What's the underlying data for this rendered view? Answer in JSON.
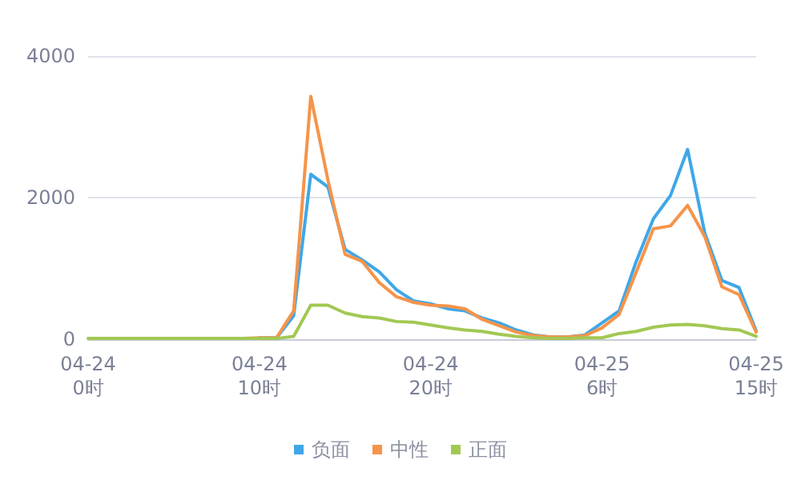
{
  "chart_data": {
    "type": "line",
    "categories": [
      "04-24\n0时",
      null,
      null,
      null,
      null,
      null,
      null,
      null,
      null,
      null,
      "04-24\n10时",
      null,
      null,
      null,
      null,
      null,
      null,
      null,
      null,
      null,
      "04-24\n20时",
      null,
      null,
      null,
      null,
      null,
      null,
      null,
      null,
      null,
      "04-25\n6时",
      null,
      null,
      null,
      null,
      null,
      null,
      null,
      null,
      "04-25\n15时"
    ],
    "series": [
      {
        "name": "负面",
        "color": "#3fa7e8",
        "values": [
          null,
          null,
          null,
          null,
          null,
          null,
          null,
          null,
          null,
          null,
          20,
          20,
          330,
          2330,
          2150,
          1270,
          1120,
          950,
          700,
          540,
          500,
          430,
          400,
          300,
          230,
          130,
          60,
          30,
          30,
          60,
          230,
          400,
          1100,
          1700,
          2030,
          2680,
          1500,
          830,
          730,
          120
        ]
      },
      {
        "name": "中性",
        "color": "#f5944a",
        "values": [
          null,
          null,
          null,
          null,
          null,
          null,
          null,
          null,
          null,
          10,
          20,
          20,
          400,
          3430,
          2250,
          1200,
          1100,
          800,
          600,
          520,
          480,
          470,
          430,
          280,
          190,
          100,
          50,
          30,
          30,
          50,
          160,
          350,
          950,
          1560,
          1600,
          1890,
          1450,
          740,
          630,
          100
        ]
      },
      {
        "name": "正面",
        "color": "#a2c854",
        "values": [
          10,
          10,
          10,
          10,
          10,
          10,
          10,
          10,
          10,
          10,
          10,
          10,
          40,
          480,
          480,
          370,
          320,
          300,
          250,
          240,
          200,
          160,
          130,
          110,
          70,
          40,
          20,
          10,
          10,
          20,
          20,
          80,
          110,
          170,
          200,
          210,
          190,
          150,
          130,
          40
        ]
      }
    ],
    "ylim": [
      0,
      4000
    ],
    "yticks": [
      0,
      2000,
      4000
    ],
    "grid": "y",
    "legend": "bottom",
    "marker": "none",
    "line_style": "solid"
  }
}
